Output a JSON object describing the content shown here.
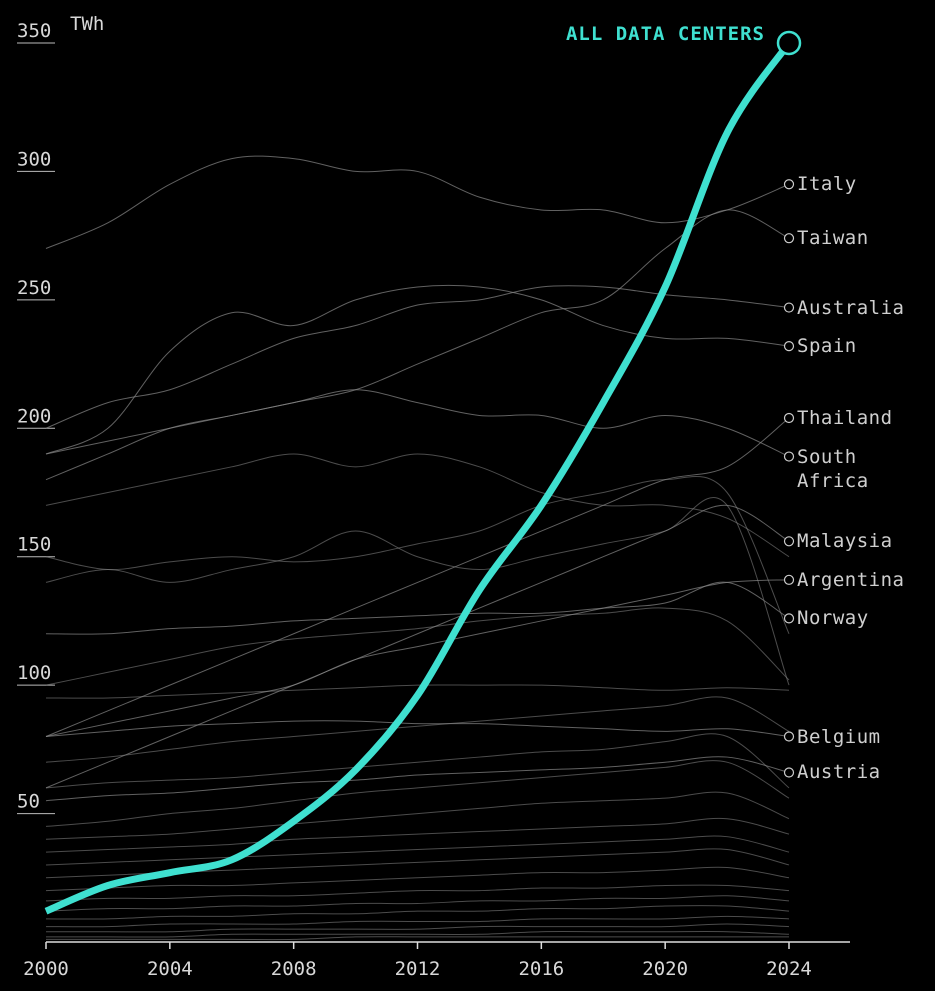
{
  "chart_data": {
    "type": "line",
    "title": "ALL DATA CENTERS",
    "y_unit": "TWh",
    "x": [
      2000,
      2002,
      2004,
      2006,
      2008,
      2010,
      2012,
      2014,
      2016,
      2018,
      2020,
      2022,
      2024
    ],
    "xlim": [
      2000,
      2024
    ],
    "xticks": [
      2000,
      2004,
      2008,
      2012,
      2016,
      2020,
      2024
    ],
    "ylim": [
      0,
      350
    ],
    "yticks": [
      50,
      100,
      150,
      200,
      250,
      300,
      350
    ],
    "highlight_color": "#3fe0d0",
    "line_color": "#8a8a8a",
    "highlight": {
      "name": "ALL DATA CENTERS",
      "values": [
        12,
        22,
        27,
        32,
        47,
        67,
        96,
        137,
        170,
        210,
        255,
        315,
        350
      ]
    },
    "series": [
      {
        "name": "Italy",
        "values": [
          270,
          280,
          295,
          305,
          305,
          300,
          300,
          290,
          285,
          285,
          280,
          285,
          295
        ]
      },
      {
        "name": "Taiwan",
        "values": [
          180,
          190,
          200,
          205,
          210,
          215,
          225,
          235,
          245,
          250,
          270,
          285,
          274
        ]
      },
      {
        "name": "Australia",
        "values": [
          200,
          210,
          215,
          225,
          235,
          240,
          248,
          250,
          255,
          255,
          252,
          250,
          247
        ]
      },
      {
        "name": "Spain",
        "values": [
          190,
          200,
          230,
          245,
          240,
          250,
          255,
          255,
          250,
          240,
          235,
          235,
          232
        ]
      },
      {
        "name": "Thailand",
        "values": [
          80,
          90,
          100,
          110,
          120,
          130,
          140,
          150,
          160,
          170,
          180,
          185,
          204
        ]
      },
      {
        "name": "South Africa",
        "values": [
          190,
          195,
          200,
          205,
          210,
          215,
          210,
          205,
          205,
          200,
          205,
          200,
          189
        ]
      },
      {
        "name": "Malaysia",
        "values": [
          60,
          70,
          80,
          90,
          100,
          110,
          120,
          130,
          140,
          150,
          160,
          170,
          156
        ]
      },
      {
        "name": "Argentina",
        "values": [
          80,
          85,
          90,
          95,
          100,
          110,
          115,
          120,
          125,
          130,
          135,
          140,
          141
        ]
      },
      {
        "name": "Norway",
        "values": [
          120,
          120,
          122,
          123,
          125,
          126,
          127,
          128,
          128,
          130,
          132,
          140,
          126
        ]
      },
      {
        "name": "Belgium",
        "values": [
          80,
          82,
          84,
          85,
          86,
          86,
          85,
          85,
          84,
          83,
          82,
          83,
          80
        ]
      },
      {
        "name": "Austria",
        "values": [
          55,
          57,
          58,
          60,
          62,
          63,
          65,
          66,
          67,
          68,
          70,
          72,
          66
        ]
      }
    ],
    "other_series": [
      [
        140,
        145,
        140,
        145,
        150,
        160,
        150,
        145,
        150,
        155,
        160,
        170,
        100
      ],
      [
        150,
        145,
        148,
        150,
        148,
        150,
        155,
        160,
        170,
        175,
        180,
        175,
        120
      ],
      [
        170,
        175,
        180,
        185,
        190,
        185,
        190,
        185,
        175,
        170,
        170,
        165,
        150
      ],
      [
        100,
        105,
        110,
        115,
        118,
        120,
        122,
        125,
        127,
        128,
        130,
        125,
        102
      ],
      [
        95,
        95,
        96,
        97,
        98,
        99,
        100,
        100,
        100,
        99,
        98,
        99,
        98
      ],
      [
        70,
        72,
        75,
        78,
        80,
        82,
        84,
        86,
        88,
        90,
        92,
        95,
        82
      ],
      [
        60,
        62,
        63,
        64,
        66,
        68,
        70,
        72,
        74,
        75,
        78,
        80,
        60
      ],
      [
        45,
        47,
        50,
        52,
        55,
        58,
        60,
        62,
        64,
        66,
        68,
        70,
        56
      ],
      [
        40,
        41,
        42,
        44,
        46,
        48,
        50,
        52,
        54,
        55,
        56,
        58,
        48
      ],
      [
        35,
        36,
        37,
        38,
        40,
        41,
        42,
        43,
        44,
        45,
        46,
        48,
        42
      ],
      [
        30,
        31,
        32,
        33,
        34,
        35,
        36,
        37,
        38,
        39,
        40,
        41,
        35
      ],
      [
        25,
        26,
        27,
        28,
        29,
        30,
        31,
        32,
        33,
        34,
        35,
        36,
        30
      ],
      [
        20,
        21,
        22,
        22,
        23,
        24,
        25,
        26,
        27,
        27,
        28,
        29,
        25
      ],
      [
        16,
        17,
        17,
        18,
        18,
        19,
        20,
        20,
        21,
        21,
        22,
        22,
        20
      ],
      [
        12,
        13,
        13,
        14,
        14,
        15,
        15,
        16,
        16,
        17,
        17,
        18,
        16
      ],
      [
        9,
        9,
        10,
        10,
        11,
        11,
        12,
        12,
        13,
        13,
        14,
        14,
        12
      ],
      [
        6,
        6,
        7,
        7,
        7,
        8,
        8,
        8,
        9,
        9,
        9,
        10,
        9
      ],
      [
        4,
        4,
        4,
        5,
        5,
        5,
        5,
        6,
        6,
        6,
        6,
        7,
        6
      ],
      [
        2,
        2,
        2,
        3,
        3,
        3,
        3,
        3,
        4,
        4,
        4,
        4,
        3
      ],
      [
        1,
        1,
        1,
        1,
        1,
        2,
        2,
        2,
        2,
        2,
        2,
        2,
        2
      ]
    ]
  }
}
